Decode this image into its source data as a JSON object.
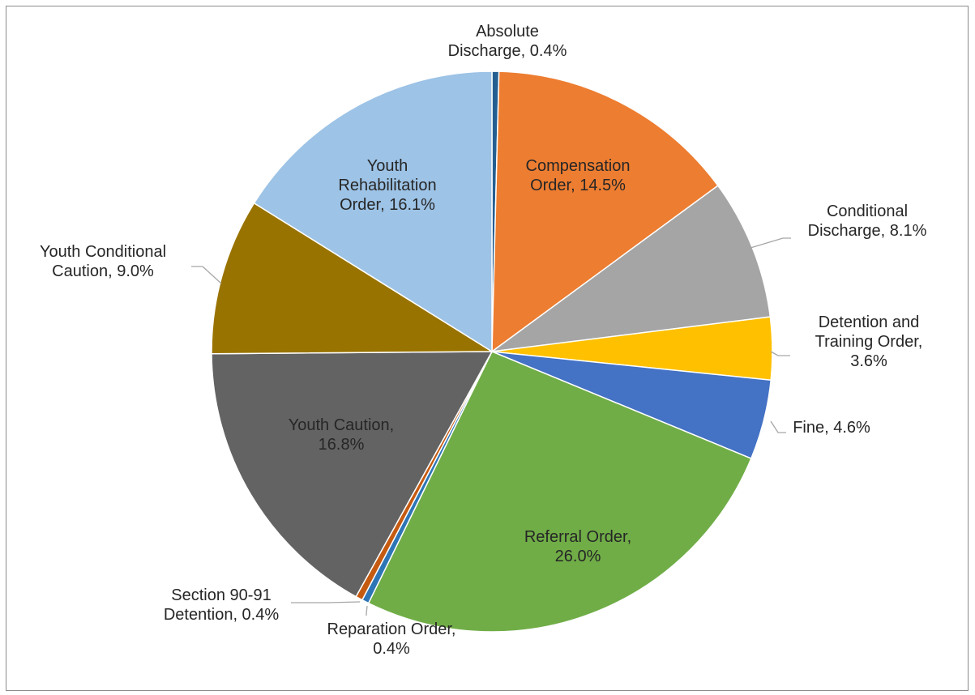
{
  "chart_data": {
    "type": "pie",
    "start_angle_deg": 0,
    "direction": "clockwise",
    "slices": [
      {
        "name": "Absolute",
        "name2": "Discharge",
        "value": 0.4,
        "label_line1": "Absolute",
        "label_line2": "Discharge, 0.4%",
        "label_line3": "",
        "color": "#255e91"
      },
      {
        "name": "Compensation Order",
        "value": 14.5,
        "label_line1": "Compensation",
        "label_line2": "Order, 14.5%",
        "label_line3": "",
        "color": "#ed7d31"
      },
      {
        "name": "Conditional Discharge",
        "value": 8.1,
        "label_line1": "Conditional",
        "label_line2": "Discharge, 8.1%",
        "label_line3": "",
        "color": "#a5a5a5"
      },
      {
        "name": "Detention and Training Order",
        "value": 3.6,
        "label_line1": "Detention and",
        "label_line2": "Training Order,",
        "label_line3": "3.6%",
        "color": "#ffc000"
      },
      {
        "name": "Fine",
        "value": 4.6,
        "label_line1": "Fine, 4.6%",
        "label_line2": "",
        "label_line3": "",
        "color": "#4472c4"
      },
      {
        "name": "Referral Order",
        "value": 26.0,
        "label_line1": "Referral Order,",
        "label_line2": "26.0%",
        "label_line3": "",
        "color": "#70ad47"
      },
      {
        "name": "Reparation Order",
        "value": 0.4,
        "label_line1": "Reparation Order,",
        "label_line2": "0.4%",
        "label_line3": "",
        "color": "#2e75b6"
      },
      {
        "name": "Section 90-91 Detention",
        "value": 0.4,
        "label_line1": "Section 90-91",
        "label_line2": "Detention, 0.4%",
        "label_line3": "",
        "color": "#c55a11"
      },
      {
        "name": "Youth Caution",
        "value": 16.8,
        "label_line1": "Youth Caution,",
        "label_line2": "16.8%",
        "label_line3": "",
        "color": "#636363"
      },
      {
        "name": "Youth Conditional Caution",
        "value": 9.0,
        "label_line1": "Youth Conditional",
        "label_line2": "Caution, 9.0%",
        "label_line3": "",
        "color": "#997300"
      },
      {
        "name": "Youth Rehabilitation Order",
        "value": 16.1,
        "label_line1": "Youth",
        "label_line2": "Rehabilitation",
        "label_line3": "Order, 16.1%",
        "color": "#9dc3e6"
      }
    ]
  }
}
